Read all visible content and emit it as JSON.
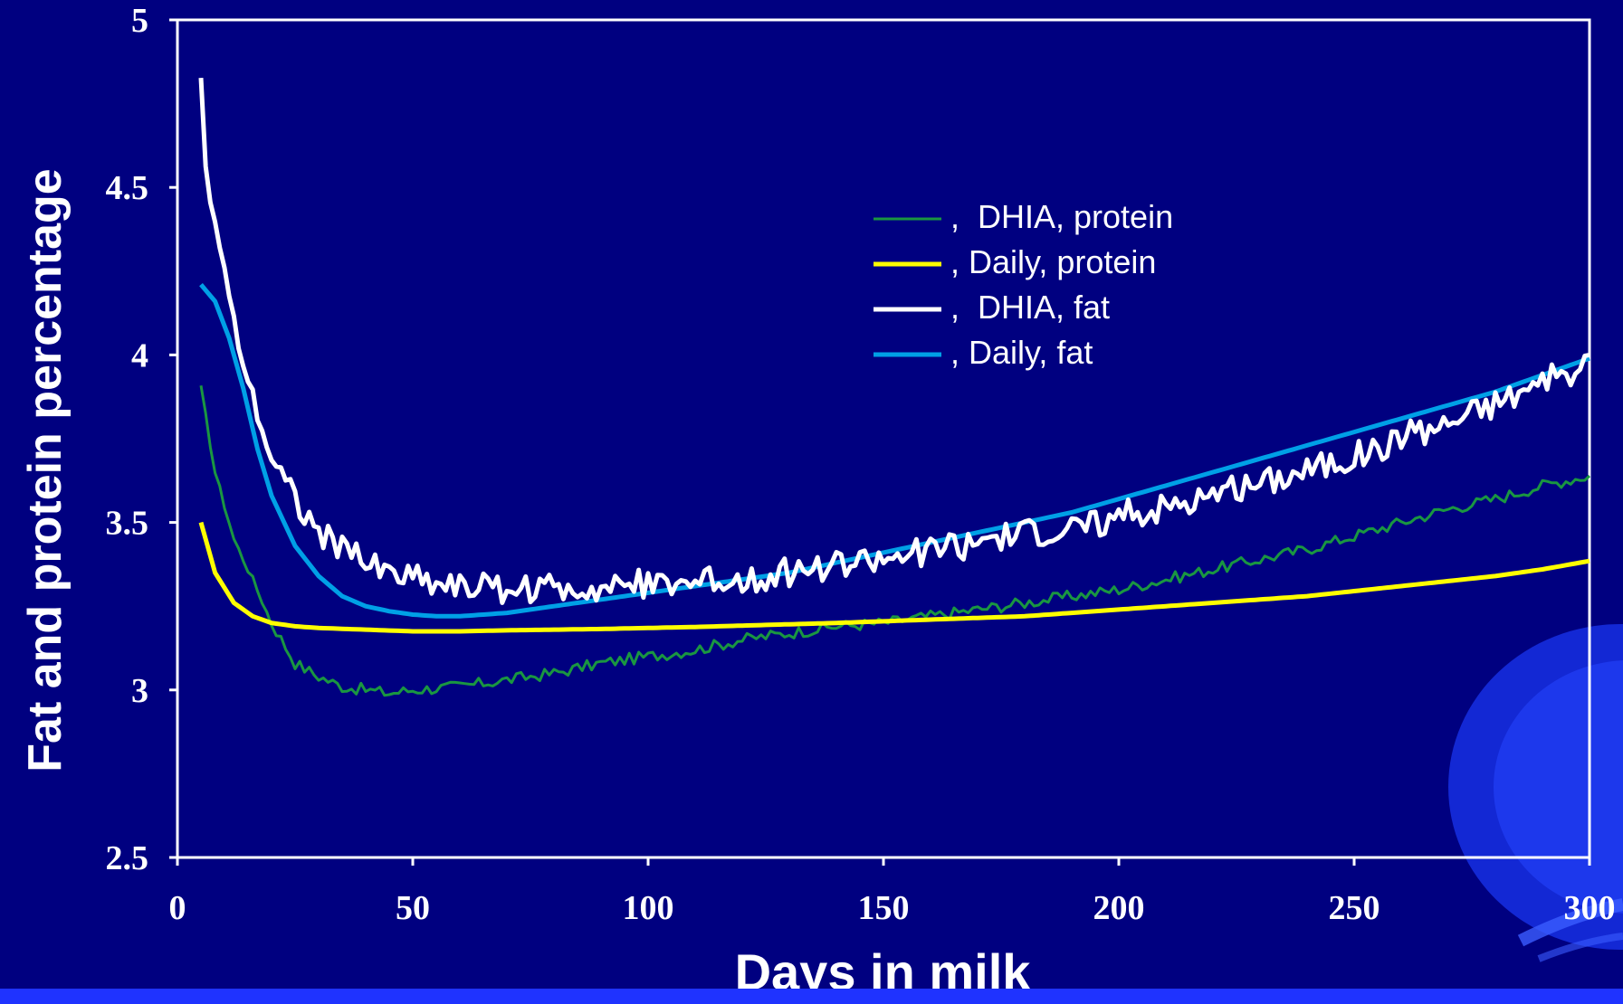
{
  "chart_data": {
    "type": "line",
    "xlabel": "Days in milk",
    "ylabel": "Fat and protein percentage",
    "xlim": [
      0,
      300
    ],
    "ylim": [
      2.5,
      5
    ],
    "xticks": [
      "0",
      "50",
      "100",
      "150",
      "200",
      "250",
      "300"
    ],
    "yticks": [
      "2.5",
      "3",
      "3.5",
      "4",
      "4.5",
      "5"
    ],
    "legend_position": "upper-center",
    "grid": false,
    "series": [
      {
        "name": ",  DHIA, protein",
        "color": "#1a9641",
        "style": "noisy",
        "x": [
          5,
          8,
          12,
          16,
          20,
          25,
          30,
          35,
          40,
          45,
          50,
          60,
          70,
          80,
          90,
          100,
          110,
          120,
          130,
          140,
          150,
          160,
          170,
          180,
          190,
          200,
          210,
          220,
          230,
          240,
          250,
          260,
          270,
          280,
          290,
          300
        ],
        "values": [
          3.9,
          3.65,
          3.45,
          3.33,
          3.2,
          3.08,
          3.04,
          3.01,
          3.0,
          2.99,
          3.0,
          3.01,
          3.03,
          3.05,
          3.08,
          3.1,
          3.12,
          3.15,
          3.17,
          3.19,
          3.2,
          3.22,
          3.24,
          3.26,
          3.28,
          3.3,
          3.33,
          3.36,
          3.39,
          3.42,
          3.46,
          3.5,
          3.54,
          3.57,
          3.61,
          3.64
        ]
      },
      {
        "name": ", Daily, protein",
        "color": "#ffff00",
        "style": "smooth",
        "x": [
          5,
          8,
          12,
          16,
          20,
          25,
          30,
          40,
          50,
          60,
          70,
          80,
          90,
          100,
          110,
          120,
          130,
          140,
          150,
          160,
          170,
          180,
          190,
          200,
          210,
          220,
          230,
          240,
          250,
          260,
          270,
          280,
          290,
          300
        ],
        "values": [
          3.5,
          3.35,
          3.26,
          3.22,
          3.2,
          3.19,
          3.185,
          3.18,
          3.175,
          3.175,
          3.178,
          3.18,
          3.182,
          3.185,
          3.188,
          3.192,
          3.196,
          3.2,
          3.205,
          3.21,
          3.215,
          3.22,
          3.23,
          3.24,
          3.25,
          3.26,
          3.27,
          3.28,
          3.295,
          3.31,
          3.325,
          3.34,
          3.36,
          3.385
        ]
      },
      {
        "name": ",  DHIA, fat",
        "color": "#ffffff",
        "style": "noisy",
        "x": [
          5,
          6,
          8,
          10,
          12,
          14,
          16,
          18,
          20,
          23,
          26,
          30,
          35,
          40,
          45,
          50,
          55,
          60,
          70,
          80,
          90,
          100,
          110,
          120,
          130,
          140,
          150,
          160,
          170,
          180,
          190,
          200,
          210,
          220,
          230,
          240,
          250,
          260,
          270,
          280,
          290,
          300
        ],
        "values": [
          4.82,
          4.55,
          4.4,
          4.25,
          4.1,
          3.98,
          3.88,
          3.78,
          3.7,
          3.62,
          3.55,
          3.48,
          3.42,
          3.38,
          3.35,
          3.34,
          3.32,
          3.31,
          3.3,
          3.3,
          3.31,
          3.32,
          3.32,
          3.33,
          3.35,
          3.37,
          3.39,
          3.42,
          3.44,
          3.46,
          3.48,
          3.52,
          3.55,
          3.58,
          3.62,
          3.66,
          3.7,
          3.75,
          3.8,
          3.86,
          3.92,
          3.96
        ]
      },
      {
        "name": ", Daily, fat",
        "color": "#00a0e6",
        "style": "smooth",
        "x": [
          5,
          8,
          11,
          14,
          17,
          20,
          25,
          30,
          35,
          40,
          45,
          50,
          55,
          60,
          70,
          80,
          90,
          100,
          110,
          120,
          130,
          140,
          150,
          160,
          170,
          180,
          190,
          200,
          210,
          220,
          230,
          240,
          250,
          260,
          270,
          280,
          290,
          300
        ],
        "values": [
          4.21,
          4.16,
          4.05,
          3.9,
          3.72,
          3.58,
          3.43,
          3.34,
          3.28,
          3.25,
          3.235,
          3.225,
          3.22,
          3.22,
          3.23,
          3.25,
          3.27,
          3.29,
          3.31,
          3.33,
          3.35,
          3.38,
          3.41,
          3.44,
          3.47,
          3.5,
          3.53,
          3.57,
          3.61,
          3.65,
          3.69,
          3.73,
          3.77,
          3.81,
          3.85,
          3.89,
          3.94,
          3.99
        ]
      }
    ]
  }
}
